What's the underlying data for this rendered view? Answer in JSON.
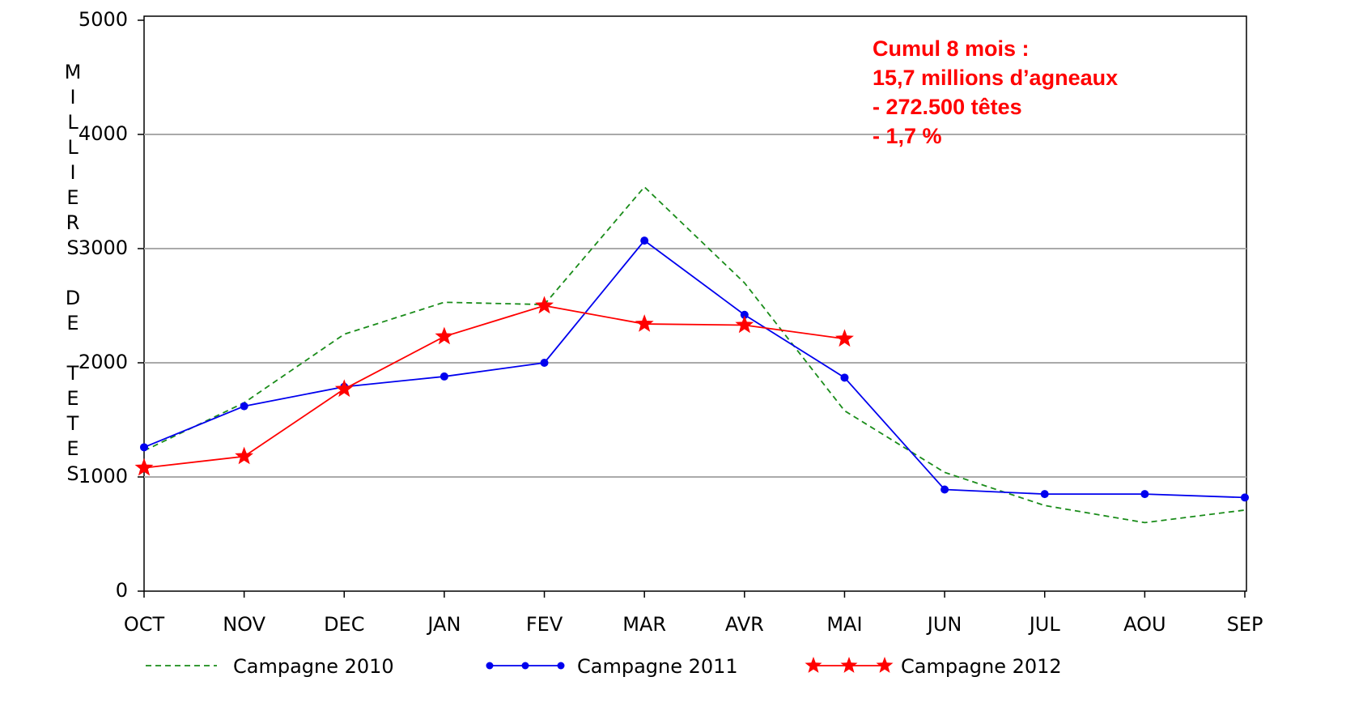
{
  "chart_data": {
    "type": "line",
    "y_label": "MILLIERS DE TETES",
    "annotations": [
      "Cumul 8 mois :",
      "15,7 millions d’agneaux",
      "- 272.500 têtes",
      "- 1,7 %"
    ],
    "categories": [
      "OCT",
      "NOV",
      "DEC",
      "JAN",
      "FEV",
      "MAR",
      "AVR",
      "MAI",
      "JUN",
      "JUL",
      "AOU",
      "SEP"
    ],
    "series": [
      {
        "name": "Campagne 2010",
        "color": "#1a8c1a",
        "values": [
          1230,
          1650,
          2250,
          2530,
          2510,
          3540,
          2700,
          1580,
          1040,
          750,
          600,
          710
        ]
      },
      {
        "name": "Campagne 2011",
        "color": "#0000ee",
        "values": [
          1260,
          1620,
          1790,
          1880,
          2000,
          3070,
          2420,
          1870,
          890,
          850,
          850,
          820
        ]
      },
      {
        "name": "Campagne 2012",
        "color": "#ff0000",
        "values": [
          1080,
          1180,
          1770,
          2230,
          2500,
          2340,
          2330,
          2210,
          null,
          null,
          null,
          null
        ]
      }
    ],
    "ylim": [
      0,
      5000
    ],
    "yticks": [
      0,
      1000,
      2000,
      3000,
      4000,
      5000
    ],
    "grid": true
  }
}
